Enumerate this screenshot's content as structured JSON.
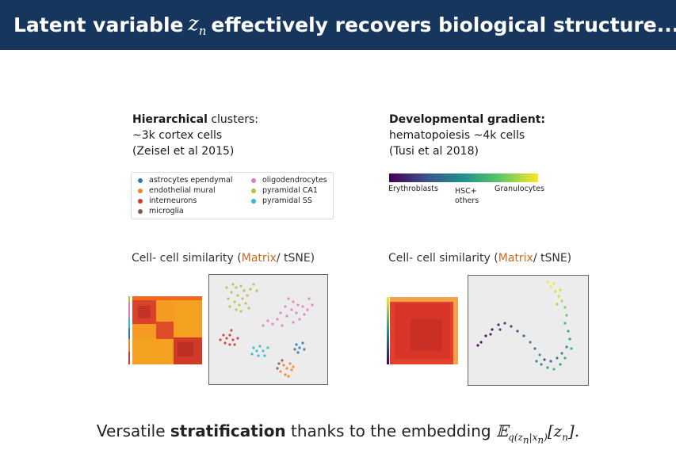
{
  "slide": {
    "title_prefix": "Latent variable",
    "title_var": "z",
    "title_sub": "n",
    "title_suffix": "effectively recovers biological structure..."
  },
  "left_panel": {
    "heading_bold": "Hierarchical",
    "heading_rest": " clusters:",
    "line2": "~3k cortex cells",
    "line3": "(Zeisel et al 2015)",
    "legend": [
      {
        "label": "astrocytes ependymal",
        "color": "#2a7ab5"
      },
      {
        "label": "endothelial mural",
        "color": "#f0862a"
      },
      {
        "label": "interneurons",
        "color": "#d23a35"
      },
      {
        "label": "microglia",
        "color": "#8a5a4a"
      },
      {
        "label": "oligodendrocytes",
        "color": "#e07ac8"
      },
      {
        "label": "pyramidal CA1",
        "color": "#bcbd3a"
      },
      {
        "label": "pyramidal SS",
        "color": "#2bbccf"
      }
    ],
    "sim_prefix": "Cell- cell similarity (",
    "sim_accent": "Matrix",
    "sim_suffix": "/ tSNE)"
  },
  "right_panel": {
    "heading_bold": "Developmental gradient:",
    "line2": "hematopoiesis ~4k cells",
    "line3": "(Tusi et al 2018)",
    "gradient_labels": {
      "left": "Erythroblasts",
      "mid_1": "HSC+",
      "mid_2": "others",
      "right": "Granulocytes"
    },
    "sim_prefix": "Cell- cell similarity (",
    "sim_accent": "Matrix",
    "sim_suffix": "/ tSNE)"
  },
  "footer": {
    "text_pre": "Versatile ",
    "text_bold": "stratification",
    "text_mid": " thanks to the embedding ",
    "math_E": "𝔼",
    "math_sub": "q(z",
    "math_sub_n": "n",
    "math_sub_bar": "|x",
    "math_sub_n2": "n",
    "math_sub_close": ")",
    "math_open": "[z",
    "math_n": "n",
    "math_close": "].",
    "accent_color": "#cc6a1a"
  }
}
